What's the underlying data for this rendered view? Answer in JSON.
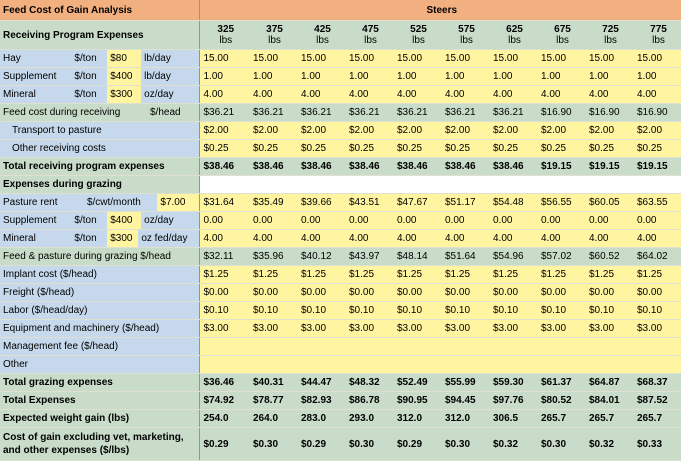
{
  "title": "Feed Cost of Gain Analysis",
  "group_header": "Steers",
  "section_receiving": "Receiving Program Expenses",
  "weights": [
    "325",
    "375",
    "425",
    "475",
    "525",
    "575",
    "625",
    "675",
    "725",
    "775"
  ],
  "weight_unit": "lbs",
  "rows": {
    "hay": {
      "name": "Hay",
      "unit": "$/ton",
      "price": "$80",
      "rate": "lb/day",
      "values": [
        "15.00",
        "15.00",
        "15.00",
        "15.00",
        "15.00",
        "15.00",
        "15.00",
        "15.00",
        "15.00",
        "15.00"
      ]
    },
    "supplement": {
      "name": "Supplement",
      "unit": "$/ton",
      "price": "$400",
      "rate": "lb/day",
      "values": [
        "1.00",
        "1.00",
        "1.00",
        "1.00",
        "1.00",
        "1.00",
        "1.00",
        "1.00",
        "1.00",
        "1.00"
      ]
    },
    "mineral": {
      "name": "Mineral",
      "unit": "$/ton",
      "price": "$300",
      "rate": "oz/day",
      "values": [
        "4.00",
        "4.00",
        "4.00",
        "4.00",
        "4.00",
        "4.00",
        "4.00",
        "4.00",
        "4.00",
        "4.00"
      ]
    },
    "feed_cost": {
      "name": "Feed cost during receiving",
      "unit": "$/head",
      "values": [
        "$36.21",
        "$36.21",
        "$36.21",
        "$36.21",
        "$36.21",
        "$36.21",
        "$36.21",
        "$16.90",
        "$16.90",
        "$16.90"
      ]
    },
    "transport": {
      "name": "Transport to pasture",
      "values": [
        "$2.00",
        "$2.00",
        "$2.00",
        "$2.00",
        "$2.00",
        "$2.00",
        "$2.00",
        "$2.00",
        "$2.00",
        "$2.00"
      ]
    },
    "other_receiving": {
      "name": "Other receiving costs",
      "values": [
        "$0.25",
        "$0.25",
        "$0.25",
        "$0.25",
        "$0.25",
        "$0.25",
        "$0.25",
        "$0.25",
        "$0.25",
        "$0.25"
      ]
    },
    "total_receiving": {
      "name": "Total receiving program expenses",
      "values": [
        "$38.46",
        "$38.46",
        "$38.46",
        "$38.46",
        "$38.46",
        "$38.46",
        "$38.46",
        "$19.15",
        "$19.15",
        "$19.15"
      ]
    },
    "section_grazing": {
      "name": "Expenses during grazing"
    },
    "pasture": {
      "name": "Pasture rent",
      "unit": "$/cwt/month",
      "price": "$7.00",
      "values": [
        "$31.64",
        "$35.49",
        "$39.66",
        "$43.51",
        "$47.67",
        "$51.17",
        "$54.48",
        "$56.55",
        "$60.05",
        "$63.55"
      ]
    },
    "supplement_g": {
      "name": "Supplement",
      "unit": "$/ton",
      "price": "$400",
      "rate": "oz/day",
      "values": [
        "0.00",
        "0.00",
        "0.00",
        "0.00",
        "0.00",
        "0.00",
        "0.00",
        "0.00",
        "0.00",
        "0.00"
      ]
    },
    "mineral_g": {
      "name": "Mineral",
      "unit": "$/ton",
      "price": "$300",
      "rate": "oz fed/day",
      "values": [
        "4.00",
        "4.00",
        "4.00",
        "4.00",
        "4.00",
        "4.00",
        "4.00",
        "4.00",
        "4.00",
        "4.00"
      ]
    },
    "feed_pasture": {
      "name": "Feed & pasture during grazing $/head",
      "values": [
        "$32.11",
        "$35.96",
        "$40.12",
        "$43.97",
        "$48.14",
        "$51.64",
        "$54.96",
        "$57.02",
        "$60.52",
        "$64.02"
      ]
    },
    "implant": {
      "name": "Implant cost ($/head)",
      "values": [
        "$1.25",
        "$1.25",
        "$1.25",
        "$1.25",
        "$1.25",
        "$1.25",
        "$1.25",
        "$1.25",
        "$1.25",
        "$1.25"
      ]
    },
    "freight": {
      "name": "Freight ($/head)",
      "values": [
        "$0.00",
        "$0.00",
        "$0.00",
        "$0.00",
        "$0.00",
        "$0.00",
        "$0.00",
        "$0.00",
        "$0.00",
        "$0.00"
      ]
    },
    "labor": {
      "name": "Labor ($/head/day)",
      "values": [
        "$0.10",
        "$0.10",
        "$0.10",
        "$0.10",
        "$0.10",
        "$0.10",
        "$0.10",
        "$0.10",
        "$0.10",
        "$0.10"
      ]
    },
    "equipment": {
      "name": "Equipment and machinery ($/head)",
      "values": [
        "$3.00",
        "$3.00",
        "$3.00",
        "$3.00",
        "$3.00",
        "$3.00",
        "$3.00",
        "$3.00",
        "$3.00",
        "$3.00"
      ]
    },
    "management": {
      "name": "Management fee ($/head)"
    },
    "other": {
      "name": "Other"
    },
    "total_grazing": {
      "name": "Total grazing expenses",
      "values": [
        "$36.46",
        "$40.31",
        "$44.47",
        "$48.32",
        "$52.49",
        "$55.99",
        "$59.30",
        "$61.37",
        "$64.87",
        "$68.37"
      ]
    },
    "total_expenses": {
      "name": "Total Expenses",
      "values": [
        "$74.92",
        "$78.77",
        "$82.93",
        "$86.78",
        "$90.95",
        "$94.45",
        "$97.76",
        "$80.52",
        "$84.01",
        "$87.52"
      ]
    },
    "weight_gain": {
      "name": "Expected weight gain (lbs)",
      "values": [
        "254.0",
        "264.0",
        "283.0",
        "293.0",
        "312.0",
        "312.0",
        "306.5",
        "265.7",
        "265.7",
        "265.7"
      ]
    },
    "cost_of_gain": {
      "name": "Cost of gain excluding vet, marketing, and other expenses ($/lbs)",
      "values": [
        "$0.29",
        "$0.30",
        "$0.29",
        "$0.30",
        "$0.29",
        "$0.30",
        "$0.32",
        "$0.30",
        "$0.32",
        "$0.33"
      ]
    }
  },
  "colors": {
    "header": "#f2b080",
    "green": "#c9dcc9",
    "blue": "#c6d9ec",
    "yellow": "#fff5a0"
  }
}
